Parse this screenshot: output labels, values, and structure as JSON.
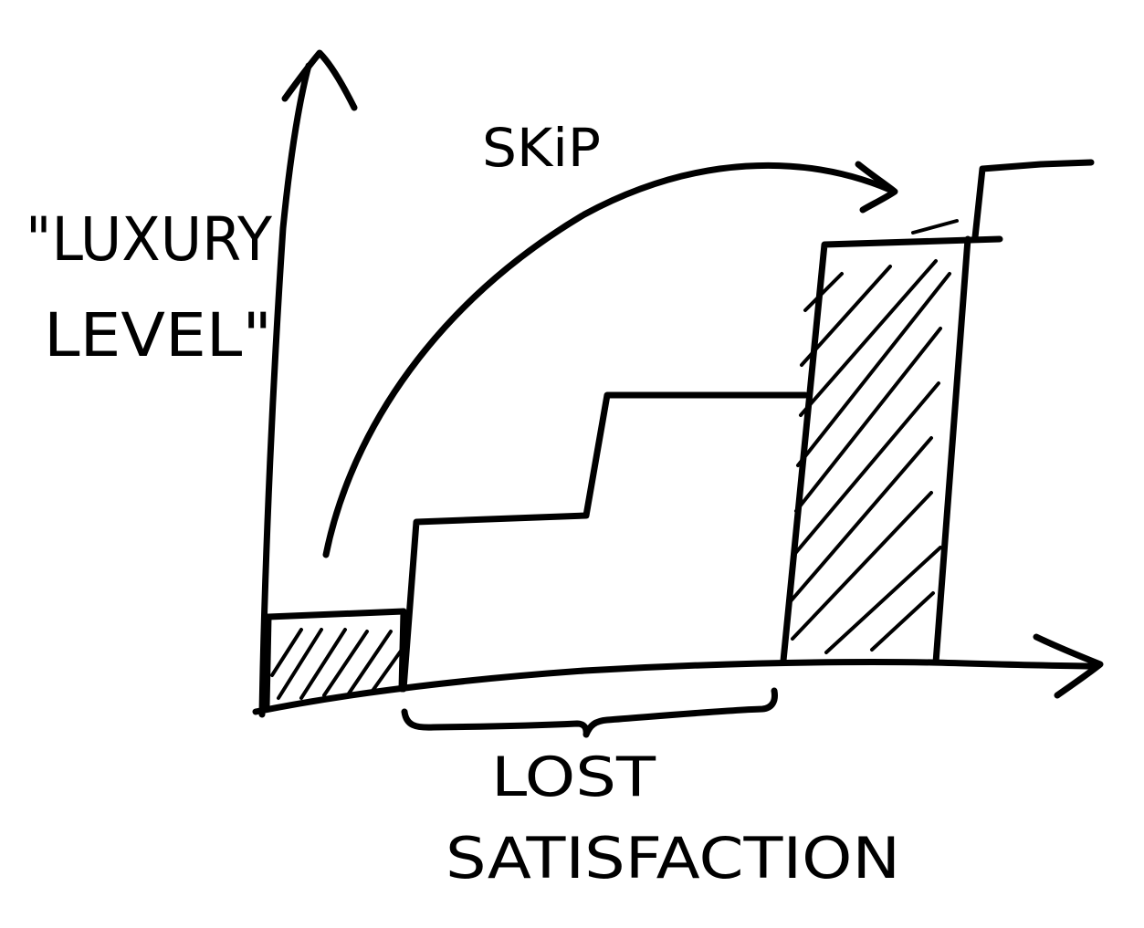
{
  "y_axis_label_line1": "\"LUXURY",
  "y_axis_label_line2": "LEVEL\"",
  "arrow_label": "SKiP",
  "bracket_label_line1": "LOST",
  "bracket_label_line2": "SATISFACTION",
  "colors": {
    "ink": "#000000",
    "paper": "#ffffff"
  }
}
